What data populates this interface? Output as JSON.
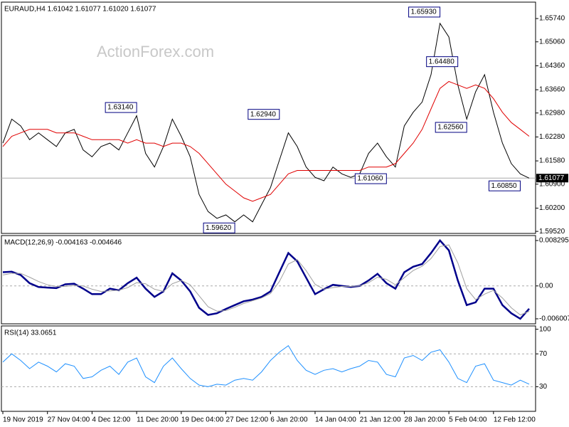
{
  "watermark": "ActionForex.com",
  "chart_data": [
    {
      "type": "line",
      "title": "EURAUD,H4  1.61042 1.61077 1.61020 1.61077",
      "ylim": [
        1.5946,
        1.6622
      ],
      "yticks": [
        {
          "value": 1.5952,
          "label": "1.59520"
        },
        {
          "value": 1.602,
          "label": "1.60200"
        },
        {
          "value": 1.609,
          "label": "1.60900"
        },
        {
          "value": 1.6158,
          "label": "1.61580"
        },
        {
          "value": 1.6228,
          "label": "1.62280"
        },
        {
          "value": 1.6298,
          "label": "1.62980"
        },
        {
          "value": 1.6366,
          "label": "1.63660"
        },
        {
          "value": 1.6436,
          "label": "1.64360"
        },
        {
          "value": 1.6506,
          "label": "1.65060"
        },
        {
          "value": 1.6574,
          "label": "1.65740"
        }
      ],
      "last_price": {
        "value": 1.61077,
        "label": "1.61077"
      },
      "annotations": [
        {
          "value": 1.6314,
          "label": "1.63140"
        },
        {
          "value": 1.5962,
          "label": "1.59620"
        },
        {
          "value": 1.6294,
          "label": "1.62940"
        },
        {
          "value": 1.6106,
          "label": "1.61060"
        },
        {
          "value": 1.6593,
          "label": "1.65930"
        },
        {
          "value": 1.6448,
          "label": "1.64480"
        },
        {
          "value": 1.6256,
          "label": "1.62560"
        },
        {
          "value": 1.6085,
          "label": "1.60850"
        }
      ],
      "series": [
        {
          "color": "#000000",
          "values": [
            1.621,
            1.628,
            1.626,
            1.622,
            1.624,
            1.622,
            1.62,
            1.624,
            1.625,
            1.619,
            1.617,
            1.62,
            1.621,
            1.619,
            1.624,
            1.629,
            1.618,
            1.614,
            1.62,
            1.628,
            1.623,
            1.617,
            1.606,
            1.601,
            1.599,
            1.6,
            1.598,
            1.6,
            1.598,
            1.603,
            1.608,
            1.616,
            1.624,
            1.62,
            1.614,
            1.611,
            1.61,
            1.614,
            1.612,
            1.611,
            1.612,
            1.618,
            1.621,
            1.617,
            1.614,
            1.626,
            1.63,
            1.633,
            1.641,
            1.656,
            1.652,
            1.638,
            1.628,
            1.636,
            1.641,
            1.63,
            1.621,
            1.615,
            1.612,
            1.61077
          ]
        },
        {
          "color": "#e00000",
          "values": [
            1.62,
            1.623,
            1.624,
            1.625,
            1.625,
            1.625,
            1.624,
            1.624,
            1.624,
            1.623,
            1.622,
            1.622,
            1.622,
            1.622,
            1.621,
            1.622,
            1.621,
            1.621,
            1.62,
            1.621,
            1.621,
            1.62,
            1.618,
            1.615,
            1.612,
            1.609,
            1.607,
            1.605,
            1.604,
            1.605,
            1.606,
            1.609,
            1.612,
            1.613,
            1.613,
            1.613,
            1.613,
            1.613,
            1.613,
            1.613,
            1.613,
            1.614,
            1.614,
            1.614,
            1.615,
            1.618,
            1.621,
            1.625,
            1.631,
            1.637,
            1.639,
            1.638,
            1.637,
            1.638,
            1.637,
            1.634,
            1.63,
            1.627,
            1.625,
            1.623
          ]
        }
      ]
    },
    {
      "type": "line",
      "title": "MACD(12,26,9) -0.004163 -0.004646",
      "ylim": [
        -0.00692,
        0.0092
      ],
      "yticks": [
        -0.006007,
        {
          "value": 0,
          "label": "0.00"
        },
        0.008295
      ],
      "levels": [
        0
      ],
      "series": [
        {
          "color": "#00008b",
          "values": [
            0.0025,
            0.0026,
            0.002,
            0.0005,
            -0.0002,
            -0.0003,
            -0.0004,
            0.0003,
            0.0004,
            -0.0005,
            -0.0015,
            -0.0015,
            -0.0005,
            -0.0008,
            0.0005,
            0.0015,
            -0.0005,
            -0.002,
            -0.001,
            0.0023,
            0.001,
            -0.001,
            -0.004,
            -0.0053,
            -0.005,
            -0.0042,
            -0.0035,
            -0.0028,
            -0.0025,
            -0.002,
            -0.001,
            0.0025,
            0.006,
            0.0045,
            0.0015,
            -0.0015,
            -0.0006,
            0.0002,
            0,
            -0.0002,
            0,
            0.001,
            0.0022,
            0.0005,
            -0.0005,
            0.0025,
            0.0035,
            0.004,
            0.006,
            0.0083,
            0.0065,
            0.001,
            -0.0035,
            -0.003,
            -0.0005,
            -0.0005,
            -0.0035,
            -0.005,
            -0.006,
            -0.004163
          ]
        },
        {
          "color": "#a0a0a0",
          "values": [
            0.002,
            0.0023,
            0.0023,
            0.0016,
            0.0008,
            0.0002,
            -0.0001,
            -0.0001,
            0.0001,
            0,
            -0.0006,
            -0.001,
            -0.0009,
            -0.0008,
            -0.0003,
            0.0006,
            0.0004,
            -0.0006,
            -0.001,
            0.0004,
            0.001,
            0.0002,
            -0.0018,
            -0.0038,
            -0.0046,
            -0.0045,
            -0.0039,
            -0.0032,
            -0.0027,
            -0.0022,
            -0.0014,
            0.0008,
            0.004,
            0.0048,
            0.0028,
            0.0003,
            -0.0006,
            -0.0003,
            -0.0001,
            -0.0001,
            0,
            0.0006,
            0.0016,
            0.0012,
            0.0002,
            0.0015,
            0.0028,
            0.0036,
            0.005,
            0.0072,
            0.0075,
            0.0042,
            -0.0005,
            -0.0025,
            -0.0015,
            -0.0008,
            -0.0022,
            -0.004,
            -0.0053,
            -0.004646
          ]
        }
      ]
    },
    {
      "type": "line",
      "title": "RSI(14) 33.0651",
      "ylim": [
        0,
        104
      ],
      "yticks": [
        30,
        70,
        100
      ],
      "levels": [
        70,
        30
      ],
      "categories": [
        "19 Nov 2019",
        null,
        null,
        null,
        null,
        "27 Nov 04:00",
        null,
        null,
        null,
        null,
        "4 Dec 12:00",
        null,
        null,
        null,
        null,
        "11 Dec 20:00",
        null,
        null,
        null,
        null,
        "19 Dec 04:00",
        null,
        null,
        null,
        null,
        "27 Dec 12:00",
        null,
        null,
        null,
        null,
        "6 Jan 20:00",
        null,
        null,
        null,
        null,
        "14 Jan 04:00",
        null,
        null,
        null,
        null,
        "21 Jan 12:00",
        null,
        null,
        null,
        null,
        "28 Jan 20:00",
        null,
        null,
        null,
        null,
        "5 Feb 04:00",
        null,
        null,
        null,
        null,
        "12 Feb 12:00",
        null,
        null,
        null,
        null
      ],
      "series": [
        {
          "color": "#1e90ff",
          "values": [
            60,
            70,
            62,
            52,
            60,
            55,
            48,
            58,
            55,
            40,
            42,
            50,
            55,
            45,
            60,
            65,
            42,
            35,
            55,
            65,
            52,
            40,
            32,
            30,
            33,
            32,
            38,
            40,
            38,
            48,
            62,
            72,
            80,
            62,
            50,
            45,
            50,
            52,
            48,
            52,
            55,
            62,
            60,
            45,
            42,
            65,
            68,
            62,
            72,
            75,
            60,
            40,
            35,
            55,
            58,
            38,
            35,
            32,
            38,
            33.0651
          ]
        }
      ]
    }
  ]
}
